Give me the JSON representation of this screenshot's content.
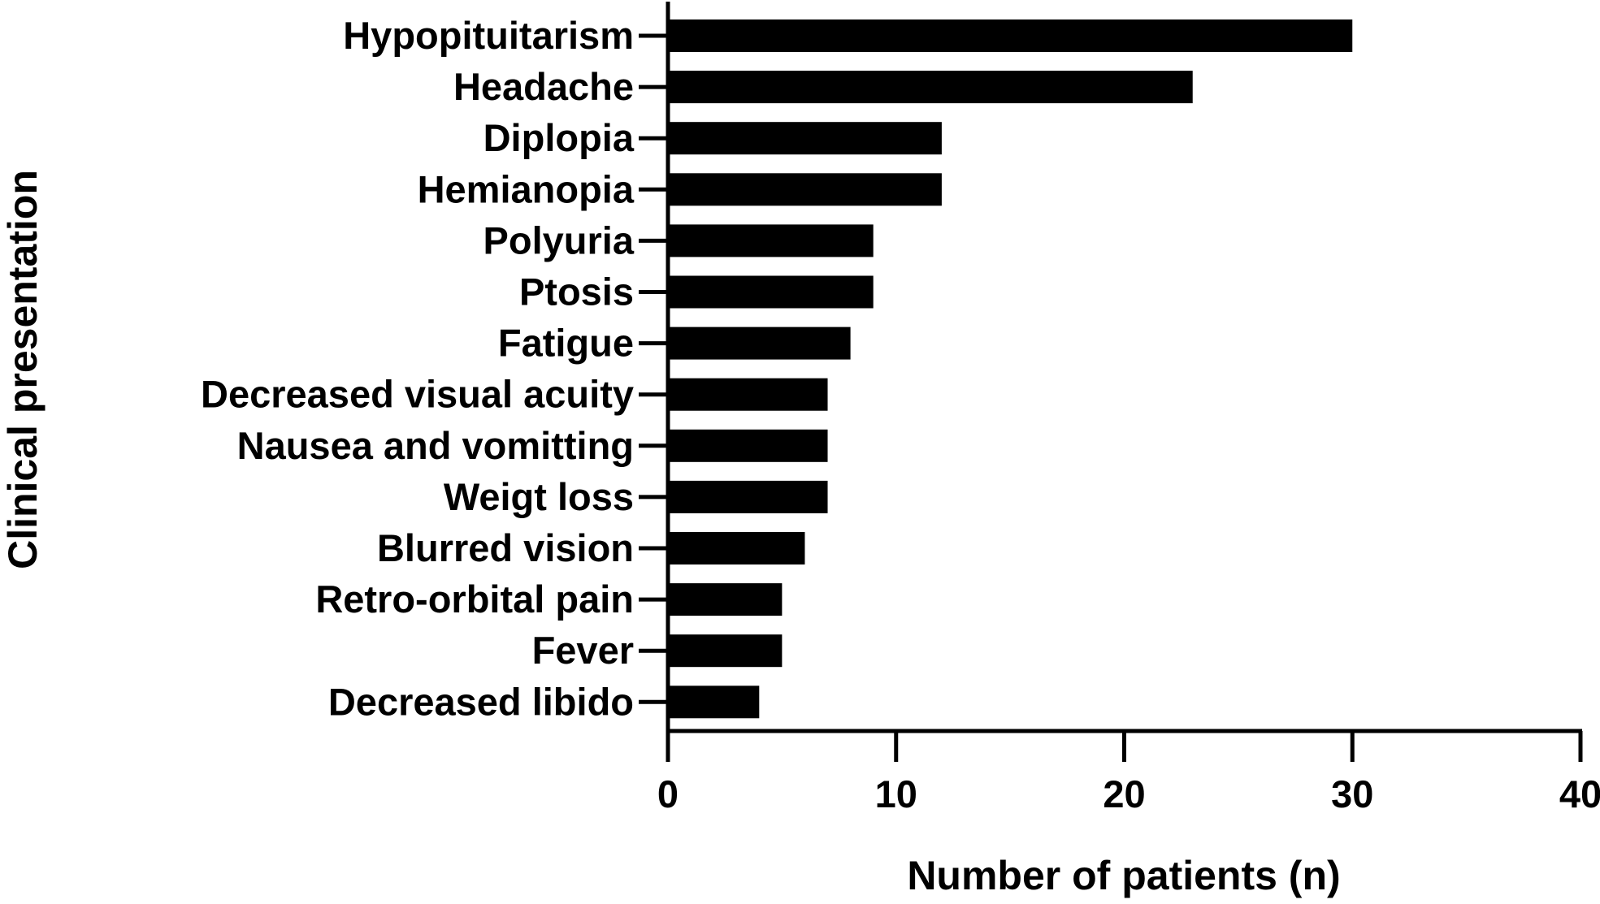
{
  "chart_data": {
    "type": "bar",
    "orientation": "horizontal",
    "categories": [
      "Hypopituitarism",
      "Headache",
      "Diplopia",
      "Hemianopia",
      "Polyuria",
      "Ptosis",
      "Fatigue",
      "Decreased visual acuity",
      "Nausea and vomitting",
      "Weigt loss",
      "Blurred vision",
      "Retro-orbital pain",
      "Fever",
      "Decreased libido"
    ],
    "values": [
      30,
      23,
      12,
      12,
      9,
      9,
      8,
      7,
      7,
      7,
      6,
      5,
      5,
      4
    ],
    "xlabel": "Number of patients (n)",
    "ylabel": "Clinical presentation",
    "xlim": [
      0,
      40
    ],
    "xticks": [
      0,
      10,
      20,
      30,
      40
    ],
    "grid": false,
    "bar_color": "#000000"
  }
}
